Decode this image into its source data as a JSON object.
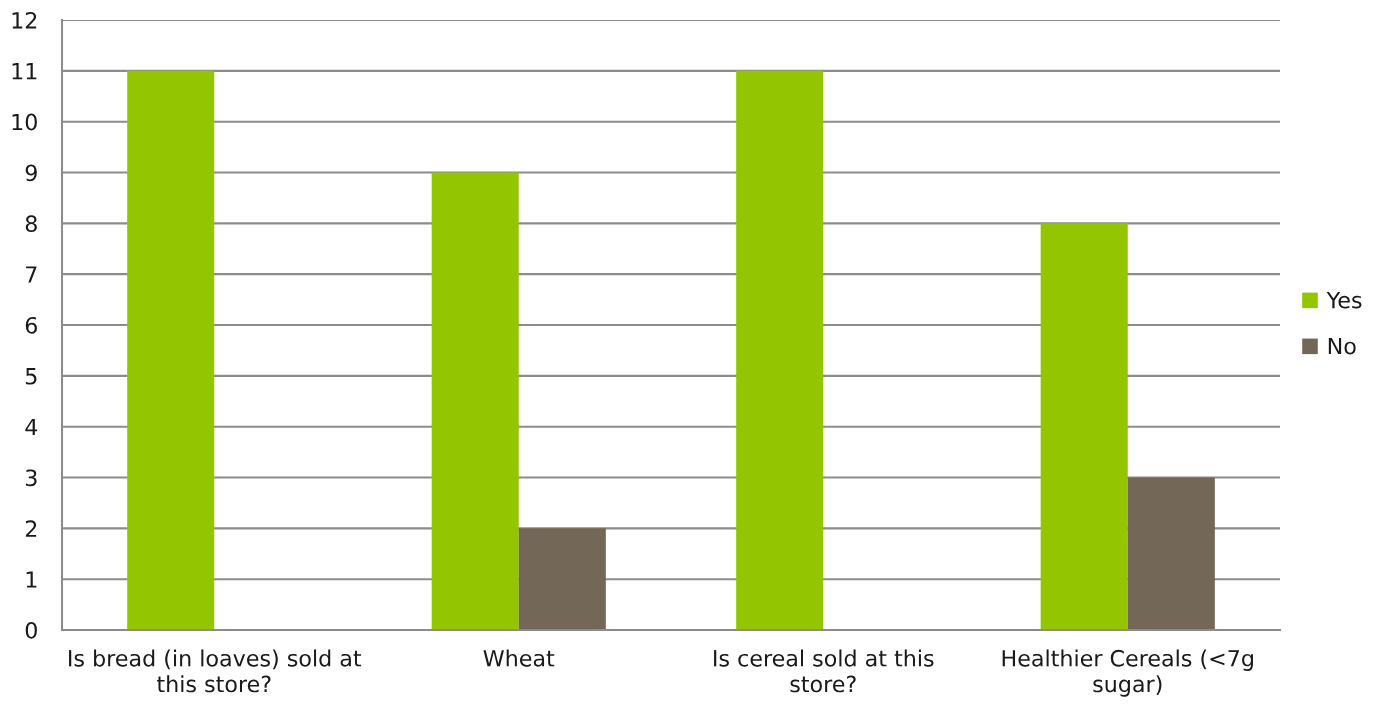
{
  "chart_data": {
    "type": "bar",
    "categories": [
      "Is bread (in loaves) sold at this store?",
      "Wheat",
      "Is cereal sold at this store?",
      "Healthier Cereals (<7g sugar)"
    ],
    "series": [
      {
        "name": "Yes",
        "color": "#94c600",
        "values": [
          11,
          9,
          11,
          8
        ]
      },
      {
        "name": "No",
        "color": "#736857",
        "values": [
          0,
          2,
          0,
          3
        ]
      }
    ],
    "ylim": [
      0,
      12
    ],
    "yticks": [
      0,
      1,
      2,
      3,
      4,
      5,
      6,
      7,
      8,
      9,
      10,
      11,
      12
    ],
    "grid": "y",
    "legend": "right"
  }
}
